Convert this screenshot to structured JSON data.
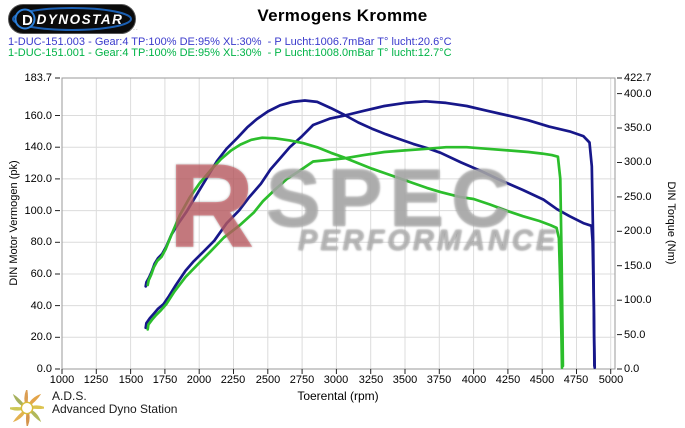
{
  "header": {
    "logo_text": "DYNOSTAR",
    "logo_note": "...",
    "title": "Vermogens Kromme"
  },
  "legend": [
    {
      "label": "1-DUC-151.003 - Gear:4 TP:100% DE:95% XL:30%  - P Lucht:1006.7mBar T° lucht:20.6°C",
      "color": "#3a3acc"
    },
    {
      "label": "1-DUC-151.001 - Gear:4 TP:100% DE:95% XL:30%  - P Lucht:1008.0mBar T° lucht:12.7°C",
      "color": "#00b347"
    }
  ],
  "watermark": {
    "letter": "R",
    "word": "SPEC",
    "subword": "PERFORMANCE"
  },
  "footer": {
    "abbr": "A.D.S.",
    "name": "Advanced Dyno Station"
  },
  "chart_data": {
    "type": "line",
    "title": "Vermogens Kromme",
    "xlabel": "Toerental (rpm)",
    "ylabel_left": "DIN Motor Vermogen (pk)",
    "ylabel_right": "DIN Torque (Nm)",
    "grid": true,
    "x_axis": {
      "min": 1000,
      "max": 5031,
      "ticks": [
        1000,
        1250,
        1500,
        1750,
        2000,
        2250,
        2500,
        2750,
        3000,
        3250,
        3500,
        3750,
        4000,
        4250,
        4500,
        4750,
        5000
      ]
    },
    "power_axis": {
      "min": 0,
      "max": 183.7,
      "tick_values": [
        183.7,
        160,
        140,
        120,
        100,
        80,
        60,
        40,
        20,
        0
      ],
      "tick_labels": [
        "183.7",
        "160.0",
        "140.0",
        "120.0",
        "100.0",
        "80.0",
        "60.0",
        "40.0",
        "20.0",
        "0.0"
      ]
    },
    "torque_axis": {
      "min": 0,
      "max": 422.7,
      "tick_values": [
        422.7,
        400,
        350,
        300,
        250,
        200,
        150,
        100,
        50,
        0
      ],
      "tick_labels": [
        "422.7",
        "400.0",
        "350.0",
        "300.0",
        "250.0",
        "200.0",
        "150.0",
        "100.0",
        "50.0",
        "0.0"
      ]
    },
    "series": [
      {
        "id": "curve-003-torque",
        "name": "1-DUC-151.003 torque (Nm)",
        "color": "#17178a",
        "axis": "torque",
        "points": [
          [
            1610,
            120
          ],
          [
            1615,
            126
          ],
          [
            1635,
            133
          ],
          [
            1655,
            142
          ],
          [
            1675,
            153
          ],
          [
            1700,
            161
          ],
          [
            1730,
            167
          ],
          [
            1760,
            178
          ],
          [
            1800,
            196
          ],
          [
            1850,
            212
          ],
          [
            1910,
            229
          ],
          [
            1990,
            256
          ],
          [
            2060,
            279
          ],
          [
            2130,
            302
          ],
          [
            2200,
            320
          ],
          [
            2280,
            336
          ],
          [
            2350,
            351
          ],
          [
            2420,
            363
          ],
          [
            2500,
            374
          ],
          [
            2590,
            383
          ],
          [
            2680,
            388
          ],
          [
            2770,
            390
          ],
          [
            2860,
            388
          ],
          [
            2960,
            379
          ],
          [
            3060,
            369
          ],
          [
            3160,
            358
          ],
          [
            3260,
            349
          ],
          [
            3360,
            341
          ],
          [
            3460,
            334
          ],
          [
            3560,
            327
          ],
          [
            3660,
            321
          ],
          [
            3760,
            314
          ],
          [
            3910,
            300
          ],
          [
            4060,
            287
          ],
          [
            4210,
            273
          ],
          [
            4360,
            260
          ],
          [
            4510,
            246
          ],
          [
            4610,
            232
          ],
          [
            4700,
            222
          ],
          [
            4800,
            212
          ],
          [
            4860,
            208
          ],
          [
            4868,
            185
          ],
          [
            4875,
            110
          ],
          [
            4880,
            35
          ],
          [
            4883,
            2
          ]
        ]
      },
      {
        "id": "curve-003-power",
        "name": "1-DUC-151.003 vermogen (pk)",
        "color": "#17178a",
        "axis": "power",
        "points": [
          [
            1610,
            26
          ],
          [
            1615,
            29
          ],
          [
            1640,
            32
          ],
          [
            1670,
            35
          ],
          [
            1700,
            38
          ],
          [
            1740,
            41
          ],
          [
            1780,
            46
          ],
          [
            1830,
            53
          ],
          [
            1900,
            62
          ],
          [
            1960,
            68
          ],
          [
            2030,
            74
          ],
          [
            2110,
            81
          ],
          [
            2200,
            92
          ],
          [
            2290,
            100
          ],
          [
            2360,
            108
          ],
          [
            2450,
            117
          ],
          [
            2520,
            126
          ],
          [
            2600,
            134
          ],
          [
            2660,
            140
          ],
          [
            2750,
            147
          ],
          [
            2830,
            154
          ],
          [
            2950,
            158
          ],
          [
            3060,
            160
          ],
          [
            3200,
            163
          ],
          [
            3350,
            166
          ],
          [
            3500,
            168
          ],
          [
            3650,
            169
          ],
          [
            3800,
            168
          ],
          [
            3950,
            166
          ],
          [
            4100,
            163
          ],
          [
            4250,
            160
          ],
          [
            4400,
            157
          ],
          [
            4550,
            153
          ],
          [
            4700,
            150
          ],
          [
            4800,
            147
          ],
          [
            4845,
            143
          ],
          [
            4862,
            128
          ],
          [
            4872,
            80
          ],
          [
            4878,
            30
          ],
          [
            4881,
            2
          ]
        ]
      },
      {
        "id": "curve-001-torque",
        "name": "1-DUC-151.001 torque (Nm)",
        "color": "#2cbe2c",
        "axis": "torque",
        "points": [
          [
            1625,
            122
          ],
          [
            1632,
            129
          ],
          [
            1650,
            137
          ],
          [
            1670,
            148
          ],
          [
            1695,
            157
          ],
          [
            1725,
            163
          ],
          [
            1755,
            174
          ],
          [
            1800,
            196
          ],
          [
            1860,
            224
          ],
          [
            1930,
            249
          ],
          [
            2000,
            269
          ],
          [
            2080,
            288
          ],
          [
            2160,
            305
          ],
          [
            2230,
            317
          ],
          [
            2300,
            326
          ],
          [
            2380,
            333
          ],
          [
            2460,
            336
          ],
          [
            2560,
            335
          ],
          [
            2660,
            332
          ],
          [
            2760,
            328
          ],
          [
            2860,
            322
          ],
          [
            2960,
            314
          ],
          [
            3060,
            307
          ],
          [
            3160,
            299
          ],
          [
            3260,
            291
          ],
          [
            3360,
            284
          ],
          [
            3460,
            277
          ],
          [
            3560,
            270
          ],
          [
            3660,
            263
          ],
          [
            3760,
            257
          ],
          [
            3900,
            250
          ],
          [
            4000,
            247
          ],
          [
            4120,
            239
          ],
          [
            4240,
            230
          ],
          [
            4360,
            222
          ],
          [
            4480,
            215
          ],
          [
            4560,
            209
          ],
          [
            4605,
            205
          ],
          [
            4622,
            190
          ],
          [
            4632,
            120
          ],
          [
            4640,
            50
          ],
          [
            4645,
            2
          ]
        ]
      },
      {
        "id": "curve-001-power",
        "name": "1-DUC-151.001 vermogen (pk)",
        "color": "#2cbe2c",
        "axis": "power",
        "points": [
          [
            1625,
            25
          ],
          [
            1630,
            28
          ],
          [
            1655,
            31
          ],
          [
            1685,
            34
          ],
          [
            1720,
            37
          ],
          [
            1760,
            41
          ],
          [
            1820,
            49
          ],
          [
            1900,
            58
          ],
          [
            2000,
            67
          ],
          [
            2080,
            74
          ],
          [
            2180,
            83
          ],
          [
            2300,
            91
          ],
          [
            2400,
            99
          ],
          [
            2465,
            106
          ],
          [
            2550,
            113
          ],
          [
            2640,
            120
          ],
          [
            2730,
            125
          ],
          [
            2830,
            131
          ],
          [
            2950,
            132
          ],
          [
            3060,
            133
          ],
          [
            3200,
            135
          ],
          [
            3350,
            137
          ],
          [
            3500,
            138
          ],
          [
            3660,
            139
          ],
          [
            3800,
            140
          ],
          [
            3950,
            140
          ],
          [
            4100,
            139
          ],
          [
            4250,
            138
          ],
          [
            4400,
            137
          ],
          [
            4500,
            136
          ],
          [
            4570,
            135
          ],
          [
            4615,
            134
          ],
          [
            4632,
            120
          ],
          [
            4642,
            70
          ],
          [
            4648,
            25
          ],
          [
            4651,
            2
          ]
        ]
      }
    ]
  }
}
